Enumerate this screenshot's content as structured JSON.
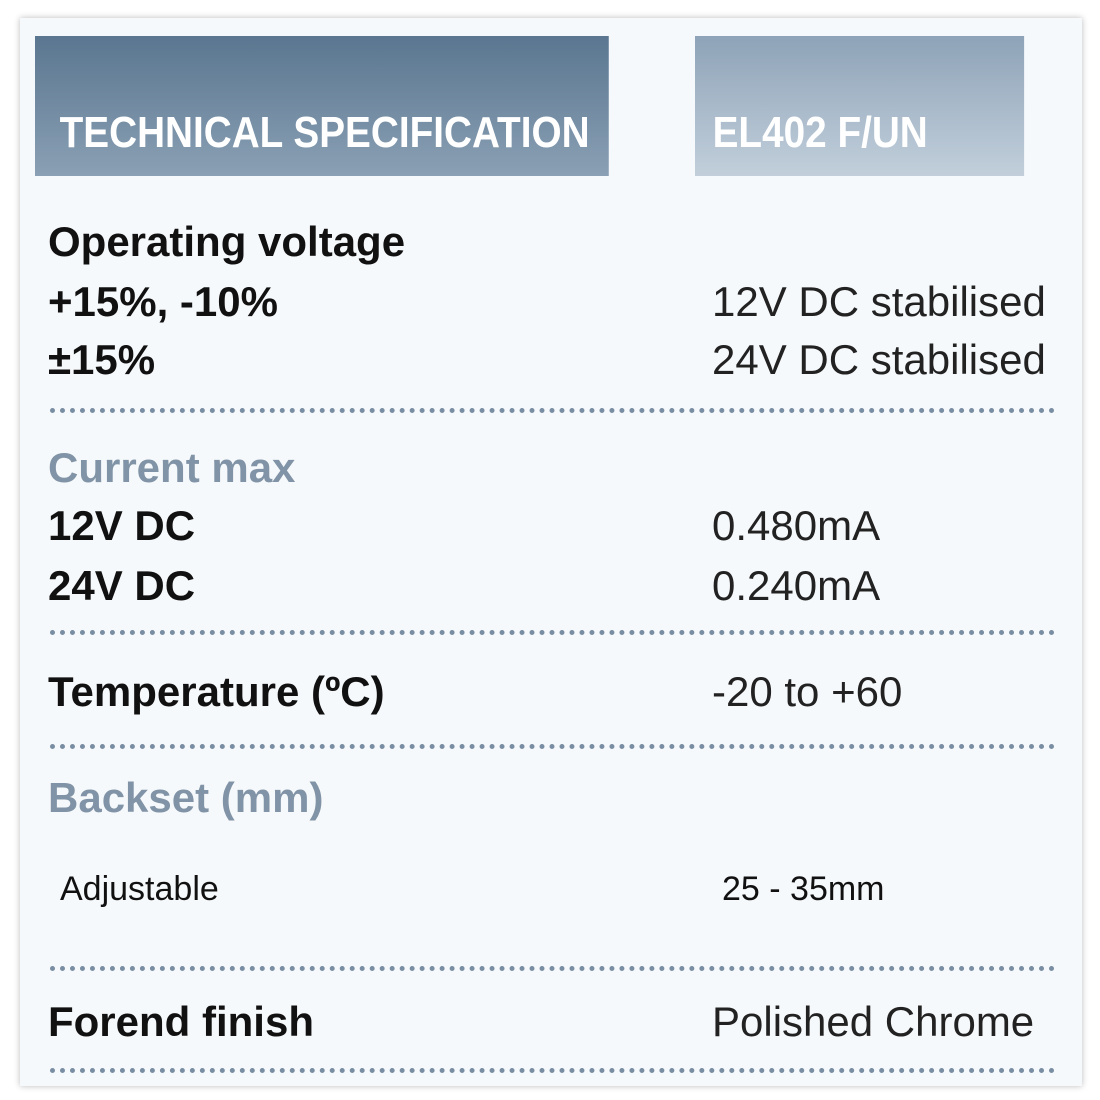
{
  "header": {
    "title": "TECHNICAL SPECIFICATION",
    "model": "EL402 F/UN"
  },
  "sections": [
    {
      "heading": "Operating voltage",
      "rows": [
        [
          "+15%, -10%",
          "12V DC stabilised"
        ],
        [
          "±15%",
          "24V DC stabilised"
        ]
      ]
    },
    {
      "heading": "Current max",
      "rows": [
        [
          "12V DC",
          "0.480mA"
        ],
        [
          "24V DC",
          "0.240mA"
        ]
      ]
    },
    {
      "heading": "Temperature (ºC)",
      "value": "-20 to +60"
    },
    {
      "heading": "Backset (mm)",
      "rows": [
        [
          "Adjustable",
          "25 - 35mm"
        ]
      ]
    },
    {
      "heading": "Forend finish",
      "value": "Polished Chrome"
    }
  ]
}
